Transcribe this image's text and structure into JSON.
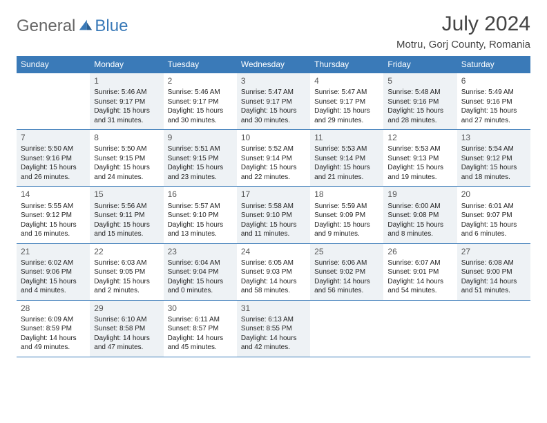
{
  "logo": {
    "text1": "General",
    "text2": "Blue"
  },
  "title": "July 2024",
  "location": "Motru, Gorj County, Romania",
  "colors": {
    "header_bg": "#3a7ab8",
    "header_text": "#ffffff",
    "rule": "#3a7ab8",
    "shaded_bg": "#eef2f5",
    "body_text": "#222222",
    "logo_blue": "#3a7ab8"
  },
  "day_names": [
    "Sunday",
    "Monday",
    "Tuesday",
    "Wednesday",
    "Thursday",
    "Friday",
    "Saturday"
  ],
  "weeks": [
    [
      {
        "day": "",
        "shaded": false
      },
      {
        "day": "1",
        "shaded": true,
        "sunrise": "Sunrise: 5:46 AM",
        "sunset": "Sunset: 9:17 PM",
        "daylight": "Daylight: 15 hours and 31 minutes."
      },
      {
        "day": "2",
        "shaded": false,
        "sunrise": "Sunrise: 5:46 AM",
        "sunset": "Sunset: 9:17 PM",
        "daylight": "Daylight: 15 hours and 30 minutes."
      },
      {
        "day": "3",
        "shaded": true,
        "sunrise": "Sunrise: 5:47 AM",
        "sunset": "Sunset: 9:17 PM",
        "daylight": "Daylight: 15 hours and 30 minutes."
      },
      {
        "day": "4",
        "shaded": false,
        "sunrise": "Sunrise: 5:47 AM",
        "sunset": "Sunset: 9:17 PM",
        "daylight": "Daylight: 15 hours and 29 minutes."
      },
      {
        "day": "5",
        "shaded": true,
        "sunrise": "Sunrise: 5:48 AM",
        "sunset": "Sunset: 9:16 PM",
        "daylight": "Daylight: 15 hours and 28 minutes."
      },
      {
        "day": "6",
        "shaded": false,
        "sunrise": "Sunrise: 5:49 AM",
        "sunset": "Sunset: 9:16 PM",
        "daylight": "Daylight: 15 hours and 27 minutes."
      }
    ],
    [
      {
        "day": "7",
        "shaded": true,
        "sunrise": "Sunrise: 5:50 AM",
        "sunset": "Sunset: 9:16 PM",
        "daylight": "Daylight: 15 hours and 26 minutes."
      },
      {
        "day": "8",
        "shaded": false,
        "sunrise": "Sunrise: 5:50 AM",
        "sunset": "Sunset: 9:15 PM",
        "daylight": "Daylight: 15 hours and 24 minutes."
      },
      {
        "day": "9",
        "shaded": true,
        "sunrise": "Sunrise: 5:51 AM",
        "sunset": "Sunset: 9:15 PM",
        "daylight": "Daylight: 15 hours and 23 minutes."
      },
      {
        "day": "10",
        "shaded": false,
        "sunrise": "Sunrise: 5:52 AM",
        "sunset": "Sunset: 9:14 PM",
        "daylight": "Daylight: 15 hours and 22 minutes."
      },
      {
        "day": "11",
        "shaded": true,
        "sunrise": "Sunrise: 5:53 AM",
        "sunset": "Sunset: 9:14 PM",
        "daylight": "Daylight: 15 hours and 21 minutes."
      },
      {
        "day": "12",
        "shaded": false,
        "sunrise": "Sunrise: 5:53 AM",
        "sunset": "Sunset: 9:13 PM",
        "daylight": "Daylight: 15 hours and 19 minutes."
      },
      {
        "day": "13",
        "shaded": true,
        "sunrise": "Sunrise: 5:54 AM",
        "sunset": "Sunset: 9:12 PM",
        "daylight": "Daylight: 15 hours and 18 minutes."
      }
    ],
    [
      {
        "day": "14",
        "shaded": false,
        "sunrise": "Sunrise: 5:55 AM",
        "sunset": "Sunset: 9:12 PM",
        "daylight": "Daylight: 15 hours and 16 minutes."
      },
      {
        "day": "15",
        "shaded": true,
        "sunrise": "Sunrise: 5:56 AM",
        "sunset": "Sunset: 9:11 PM",
        "daylight": "Daylight: 15 hours and 15 minutes."
      },
      {
        "day": "16",
        "shaded": false,
        "sunrise": "Sunrise: 5:57 AM",
        "sunset": "Sunset: 9:10 PM",
        "daylight": "Daylight: 15 hours and 13 minutes."
      },
      {
        "day": "17",
        "shaded": true,
        "sunrise": "Sunrise: 5:58 AM",
        "sunset": "Sunset: 9:10 PM",
        "daylight": "Daylight: 15 hours and 11 minutes."
      },
      {
        "day": "18",
        "shaded": false,
        "sunrise": "Sunrise: 5:59 AM",
        "sunset": "Sunset: 9:09 PM",
        "daylight": "Daylight: 15 hours and 9 minutes."
      },
      {
        "day": "19",
        "shaded": true,
        "sunrise": "Sunrise: 6:00 AM",
        "sunset": "Sunset: 9:08 PM",
        "daylight": "Daylight: 15 hours and 8 minutes."
      },
      {
        "day": "20",
        "shaded": false,
        "sunrise": "Sunrise: 6:01 AM",
        "sunset": "Sunset: 9:07 PM",
        "daylight": "Daylight: 15 hours and 6 minutes."
      }
    ],
    [
      {
        "day": "21",
        "shaded": true,
        "sunrise": "Sunrise: 6:02 AM",
        "sunset": "Sunset: 9:06 PM",
        "daylight": "Daylight: 15 hours and 4 minutes."
      },
      {
        "day": "22",
        "shaded": false,
        "sunrise": "Sunrise: 6:03 AM",
        "sunset": "Sunset: 9:05 PM",
        "daylight": "Daylight: 15 hours and 2 minutes."
      },
      {
        "day": "23",
        "shaded": true,
        "sunrise": "Sunrise: 6:04 AM",
        "sunset": "Sunset: 9:04 PM",
        "daylight": "Daylight: 15 hours and 0 minutes."
      },
      {
        "day": "24",
        "shaded": false,
        "sunrise": "Sunrise: 6:05 AM",
        "sunset": "Sunset: 9:03 PM",
        "daylight": "Daylight: 14 hours and 58 minutes."
      },
      {
        "day": "25",
        "shaded": true,
        "sunrise": "Sunrise: 6:06 AM",
        "sunset": "Sunset: 9:02 PM",
        "daylight": "Daylight: 14 hours and 56 minutes."
      },
      {
        "day": "26",
        "shaded": false,
        "sunrise": "Sunrise: 6:07 AM",
        "sunset": "Sunset: 9:01 PM",
        "daylight": "Daylight: 14 hours and 54 minutes."
      },
      {
        "day": "27",
        "shaded": true,
        "sunrise": "Sunrise: 6:08 AM",
        "sunset": "Sunset: 9:00 PM",
        "daylight": "Daylight: 14 hours and 51 minutes."
      }
    ],
    [
      {
        "day": "28",
        "shaded": false,
        "sunrise": "Sunrise: 6:09 AM",
        "sunset": "Sunset: 8:59 PM",
        "daylight": "Daylight: 14 hours and 49 minutes."
      },
      {
        "day": "29",
        "shaded": true,
        "sunrise": "Sunrise: 6:10 AM",
        "sunset": "Sunset: 8:58 PM",
        "daylight": "Daylight: 14 hours and 47 minutes."
      },
      {
        "day": "30",
        "shaded": false,
        "sunrise": "Sunrise: 6:11 AM",
        "sunset": "Sunset: 8:57 PM",
        "daylight": "Daylight: 14 hours and 45 minutes."
      },
      {
        "day": "31",
        "shaded": true,
        "sunrise": "Sunrise: 6:13 AM",
        "sunset": "Sunset: 8:55 PM",
        "daylight": "Daylight: 14 hours and 42 minutes."
      },
      {
        "day": "",
        "shaded": false
      },
      {
        "day": "",
        "shaded": false
      },
      {
        "day": "",
        "shaded": false
      }
    ]
  ]
}
